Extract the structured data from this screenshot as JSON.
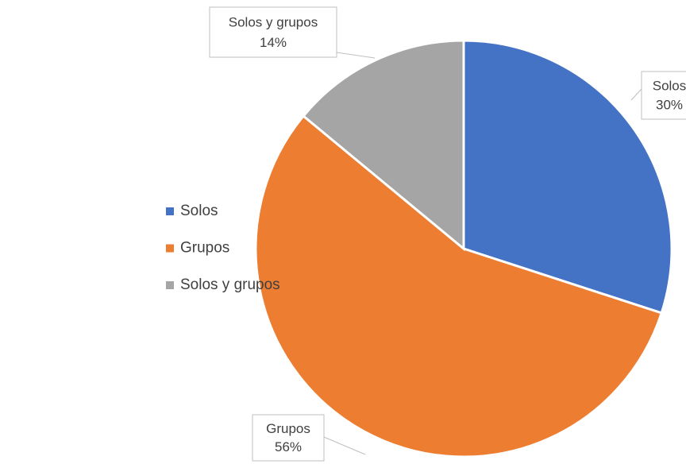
{
  "chart_data": {
    "type": "pie",
    "categories": [
      "Solos",
      "Grupos",
      "Solos y grupos"
    ],
    "values": [
      30,
      56,
      14
    ],
    "value_labels": [
      "30%",
      "56%",
      "14%"
    ],
    "colors": [
      "#4472c4",
      "#ed7d31",
      "#a5a5a5"
    ],
    "legend": "left"
  }
}
